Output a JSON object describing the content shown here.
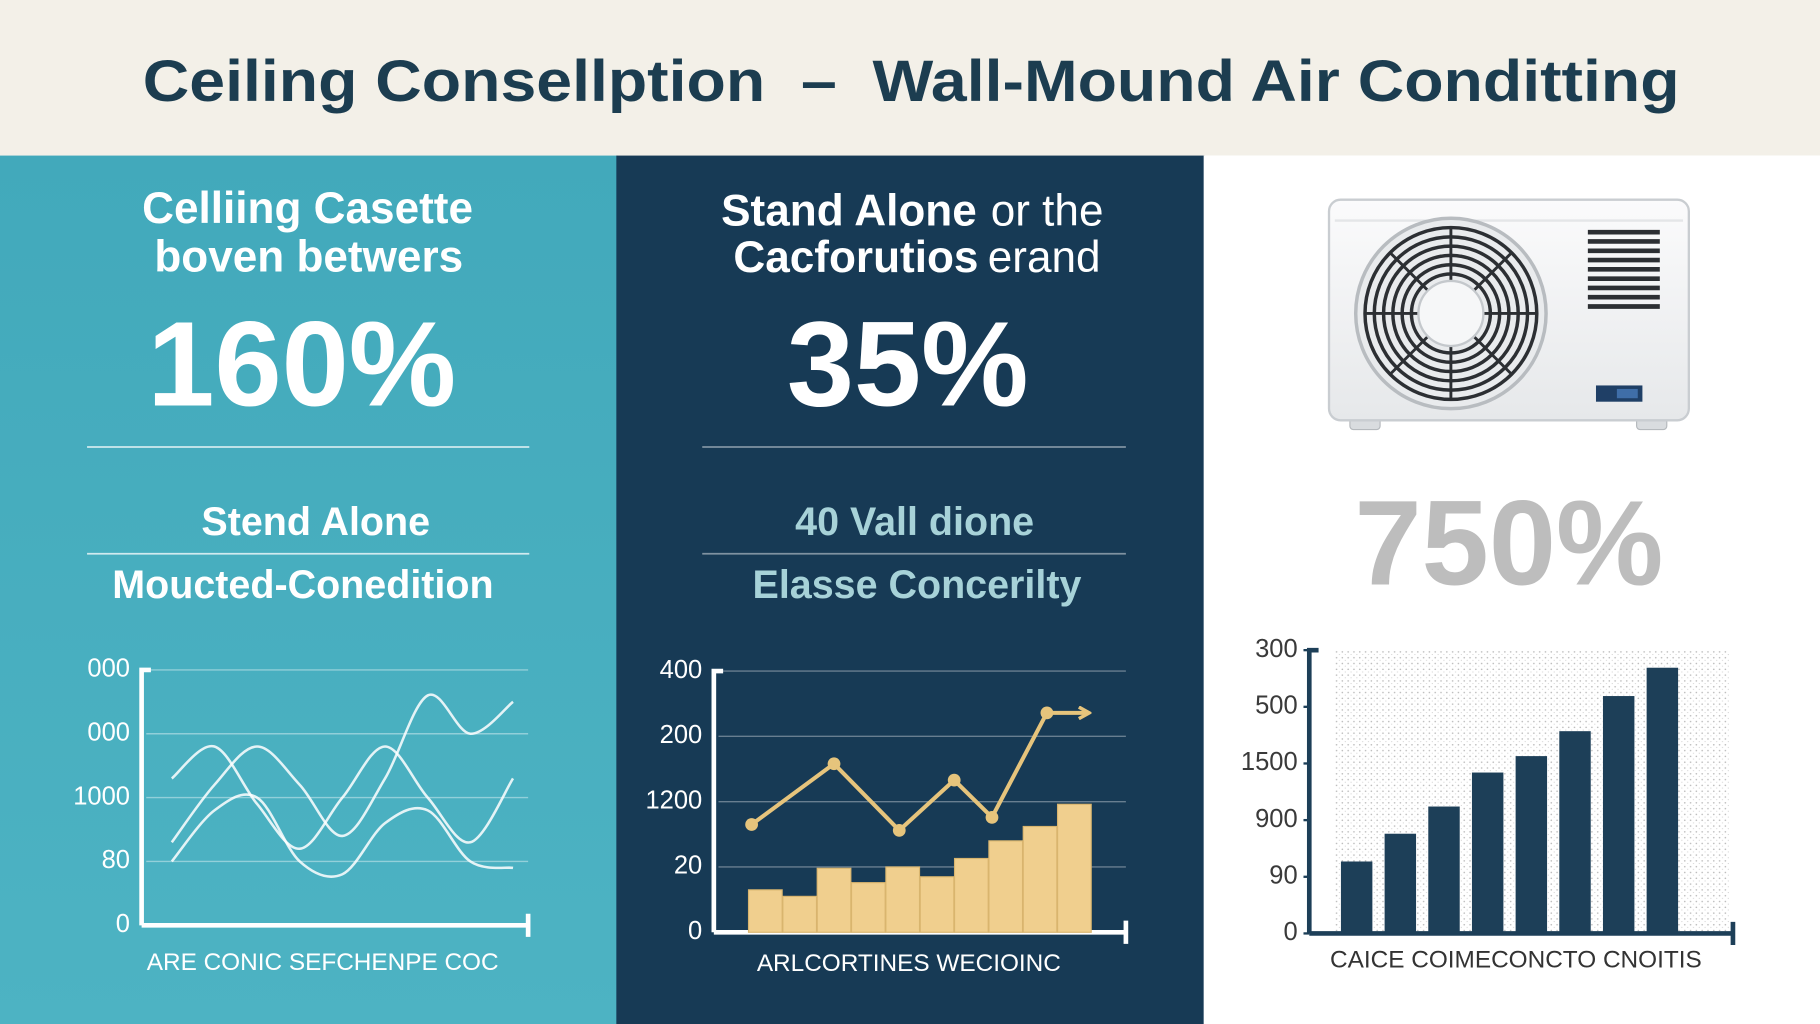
{
  "header": {
    "title": "Ceiling Consellption  –  Wall-Mound Air Conditting"
  },
  "panels": [
    {
      "heading": [
        "Celliing Casette",
        "boven betwers"
      ],
      "stat": "160%",
      "subheading": [
        "Stend Alone",
        "Moucted-Conedition"
      ]
    },
    {
      "heading": [
        [
          "Stand Alone",
          "or the"
        ],
        [
          "Cacforutios",
          "erand"
        ]
      ],
      "stat": "35%",
      "subheading": [
        "40 Vall dione",
        "Elasse Concerilty"
      ]
    },
    {
      "stat": "750%"
    }
  ],
  "chart_data": [
    {
      "type": "line",
      "smooth": true,
      "grid": true,
      "categories": [
        null,
        null,
        null,
        null,
        null,
        null,
        null,
        null,
        null
      ],
      "series": [
        {
          "color": "#ffffff",
          "values": [
            1.3,
            2.2,
            2.8,
            2.2,
            1.4,
            2.3,
            3.6,
            3.0,
            3.5
          ]
        },
        {
          "color": "#ffffff",
          "values": [
            2.3,
            2.8,
            1.9,
            1.2,
            2.0,
            2.8,
            2.0,
            1.3,
            2.3
          ]
        },
        {
          "color": "#ffffff",
          "values": [
            1.0,
            1.8,
            2.0,
            1.0,
            0.8,
            1.6,
            1.8,
            1.0,
            0.9
          ]
        }
      ],
      "ylim": [
        0,
        4
      ],
      "yticks": [
        0,
        {
          "value": 1,
          "label": "80"
        },
        {
          "value": 2,
          "label": "1000"
        },
        {
          "value": 3,
          "label": "000"
        },
        {
          "value": 4,
          "label": "000"
        }
      ],
      "x_label": "ARE CONIC SEFCHENPE COC"
    },
    {
      "type": "bar",
      "grid": true,
      "categories": [
        null,
        null,
        null,
        null,
        null,
        null,
        null,
        null,
        null,
        null
      ],
      "series": [
        {
          "color": "#f0cf8e",
          "values": [
            0.65,
            0.55,
            0.98,
            0.76,
            1.0,
            0.85,
            1.13,
            1.4,
            1.62,
            1.96
          ]
        },
        {
          "type": "line",
          "color": "#e6c47c",
          "x": [
            -0.4,
            2,
            3.9,
            5.5,
            6.6,
            8.2,
            9.4
          ],
          "values": [
            1.65,
            2.58,
            1.56,
            2.33,
            1.76,
            3.36,
            3.36
          ]
        }
      ],
      "xlim": [
        -1.5,
        10.5
      ],
      "ylim": [
        0,
        4
      ],
      "yticks": [
        0,
        {
          "value": 1,
          "label": "20"
        },
        {
          "value": 2,
          "label": "1200"
        },
        {
          "value": 3,
          "label": "200"
        },
        {
          "value": 4,
          "label": "400"
        }
      ],
      "x_label": "ARLCORTINES WECIOINC"
    },
    {
      "type": "bar",
      "grid": false,
      "categories": [
        null,
        null,
        null,
        null,
        null,
        null,
        null,
        null
      ],
      "values": [
        1.27,
        1.76,
        2.24,
        2.84,
        3.13,
        3.57,
        4.19,
        4.69
      ],
      "color": "#1d3f58",
      "ylim": [
        0,
        5
      ],
      "yticks": [
        0,
        {
          "value": 1,
          "label": "90"
        },
        {
          "value": 2,
          "label": "900"
        },
        {
          "value": 3,
          "label": "1500"
        },
        {
          "value": 4,
          "label": "500"
        },
        {
          "value": 5,
          "label": "300"
        }
      ],
      "x_label": "CAICE COIMECONCTO CNOITIS"
    }
  ]
}
